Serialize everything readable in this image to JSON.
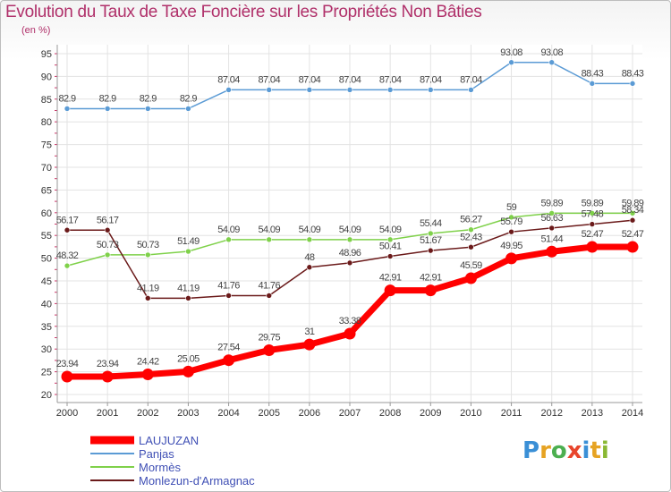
{
  "title": "Evolution du Taux de Taxe Foncière sur les Propriétés Non Bâties",
  "subtitle": "(en %)",
  "logo": {
    "text": "Proxiti",
    "colors": [
      "#3a8fd6",
      "#e6a323",
      "#4caf50",
      "#e8452c",
      "#3a8fd6",
      "#e6a323",
      "#8ab833"
    ]
  },
  "chart_data": {
    "type": "line",
    "title": "Evolution du Taux de Taxe Foncière sur les Propriétés Non Bâties",
    "ylabel": "(en %)",
    "xlabel": "",
    "ylim": [
      20,
      95
    ],
    "yticks": [
      20,
      25,
      30,
      35,
      40,
      45,
      50,
      55,
      60,
      65,
      70,
      75,
      80,
      85,
      90,
      95
    ],
    "grid": true,
    "legend_position": "bottom-left",
    "x": [
      "2000",
      "2001",
      "2002",
      "2003",
      "2004",
      "2005",
      "2006",
      "2007",
      "2008",
      "2009",
      "2010",
      "2011",
      "2012",
      "2013",
      "2014"
    ],
    "series": [
      {
        "name": "LAUJUZAN",
        "color": "#ff0000",
        "emphasis": true,
        "values": [
          23.94,
          23.94,
          24.42,
          25.05,
          27.54,
          29.75,
          31,
          33.38,
          42.91,
          42.91,
          45.59,
          49.95,
          51.44,
          52.47,
          52.47
        ],
        "labels": [
          "23.94",
          "23.94",
          "24.42",
          "25.05",
          "27.54",
          "29.75",
          "31",
          "33.38",
          "42.91",
          "42.91",
          "45.59",
          "49.95",
          "51.44",
          "52.47",
          "52.47"
        ]
      },
      {
        "name": "Panjas",
        "color": "#5b9bd5",
        "values": [
          82.9,
          82.9,
          82.9,
          82.9,
          87.04,
          87.04,
          87.04,
          87.04,
          87.04,
          87.04,
          87.04,
          93.08,
          93.08,
          88.43,
          88.43
        ],
        "labels": [
          "82.9",
          "82.9",
          "82.9",
          "82.9",
          "87.04",
          "87.04",
          "87.04",
          "87.04",
          "87.04",
          "87.04",
          "87.04",
          "93.08",
          "93.08",
          "88.43",
          "88.43"
        ]
      },
      {
        "name": "Mormès",
        "color": "#7fd14a",
        "values": [
          48.32,
          50.73,
          50.73,
          51.49,
          54.09,
          54.09,
          54.09,
          54.09,
          54.09,
          55.44,
          56.27,
          59,
          59.89,
          59.89,
          59.89
        ],
        "labels": [
          "48.32",
          "50.73",
          "50.73",
          "51.49",
          "54.09",
          "54.09",
          "54.09",
          "54.09",
          "54.09",
          "55.44",
          "56.27",
          "59",
          "59.89",
          "59.89",
          "59.89"
        ]
      },
      {
        "name": "Monlezun-d'Armagnac",
        "color": "#6b1a1a",
        "values": [
          56.17,
          56.17,
          41.19,
          41.19,
          41.76,
          41.76,
          48,
          48.96,
          50.41,
          51.67,
          52.43,
          55.79,
          56.63,
          57.48,
          58.34
        ],
        "labels": [
          "56.17",
          "56.17",
          "41.19",
          "41.19",
          "41.76",
          "41.76",
          "48",
          "48.96",
          "50.41",
          "51.67",
          "52.43",
          "55.79",
          "56.63",
          "57.48",
          "58.34"
        ]
      }
    ]
  }
}
